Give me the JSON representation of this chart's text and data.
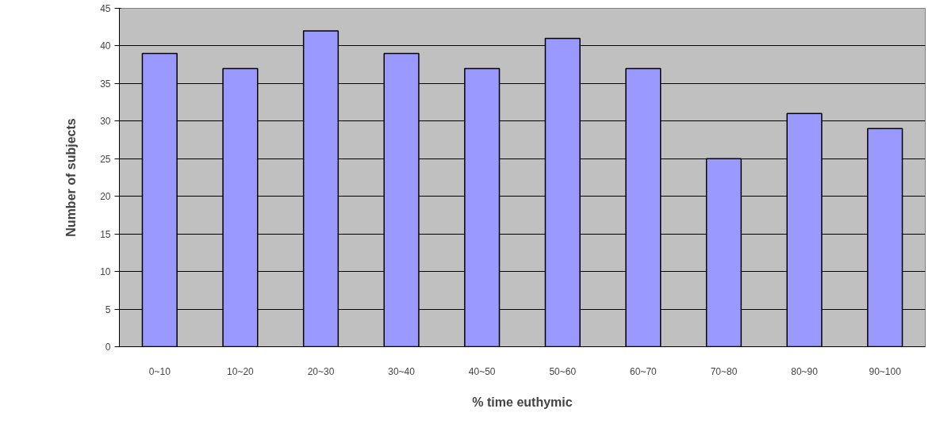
{
  "chart_data": {
    "type": "bar",
    "xlabel": "% time euthymic",
    "ylabel": "Number of subjects",
    "categories": [
      "0~10",
      "10~20",
      "20~30",
      "30~40",
      "40~50",
      "50~60",
      "60~70",
      "70~80",
      "80~90",
      "90~100"
    ],
    "values": [
      39,
      37,
      42,
      39,
      37,
      41,
      37,
      25,
      31,
      29
    ],
    "color": "#9999ff",
    "ylim": [
      0,
      45
    ],
    "yticks": [
      0,
      5,
      10,
      15,
      20,
      25,
      30,
      35,
      40,
      45
    ],
    "grid": "y"
  }
}
